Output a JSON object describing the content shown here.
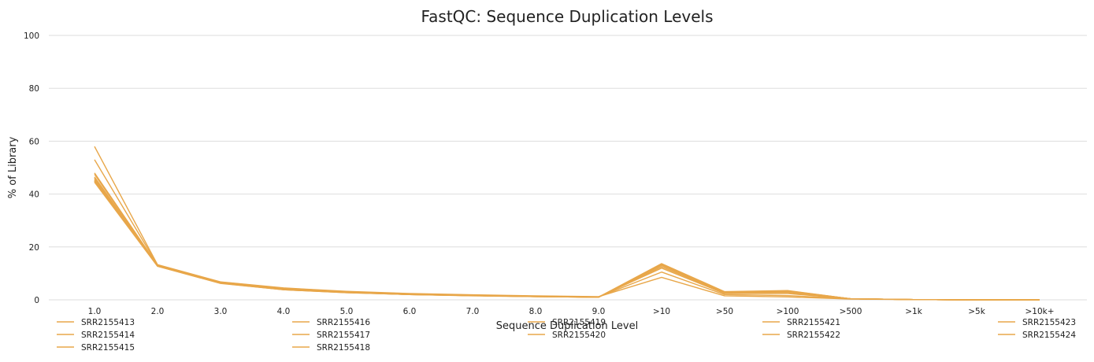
{
  "chart_data": {
    "type": "line",
    "title": "FastQC: Sequence Duplication Levels",
    "xlabel": "Sequence Duplication Level",
    "ylabel": "% of Library",
    "ylim": [
      0,
      100
    ],
    "yticks": [
      0,
      20,
      40,
      60,
      80,
      100
    ],
    "grid": true,
    "legend_position": "bottom",
    "color": "#e8a74a",
    "categories": [
      "1.0",
      "2.0",
      "3.0",
      "4.0",
      "5.0",
      "6.0",
      "7.0",
      "8.0",
      "9.0",
      ">10",
      ">50",
      ">100",
      ">500",
      ">1k",
      ">5k",
      ">10k+"
    ],
    "series": [
      {
        "name": "SRR2155413",
        "values": [
          58.0,
          13.3,
          6.8,
          4.5,
          3.2,
          2.4,
          1.9,
          1.5,
          1.2,
          8.5,
          1.5,
          1.1,
          0.3,
          0.1,
          0.0,
          0.0
        ]
      },
      {
        "name": "SRR2155414",
        "values": [
          53.0,
          13.2,
          6.7,
          4.4,
          3.1,
          2.3,
          1.8,
          1.4,
          1.1,
          10.5,
          2.0,
          1.6,
          0.4,
          0.1,
          0.0,
          0.0
        ]
      },
      {
        "name": "SRR2155415",
        "values": [
          48.0,
          13.1,
          6.6,
          4.2,
          3.0,
          2.2,
          1.7,
          1.4,
          1.1,
          12.0,
          2.4,
          2.4,
          0.4,
          0.1,
          0.0,
          0.0
        ]
      },
      {
        "name": "SRR2155416",
        "values": [
          47.5,
          13.0,
          6.5,
          4.1,
          2.9,
          2.2,
          1.7,
          1.3,
          1.1,
          12.5,
          2.6,
          2.8,
          0.4,
          0.1,
          0.0,
          0.0
        ]
      },
      {
        "name": "SRR2155417",
        "values": [
          46.5,
          12.9,
          6.5,
          4.0,
          2.9,
          2.1,
          1.7,
          1.3,
          1.0,
          13.0,
          2.7,
          3.0,
          0.4,
          0.1,
          0.0,
          0.0
        ]
      },
      {
        "name": "SRR2155418",
        "values": [
          46.0,
          12.9,
          6.4,
          4.0,
          2.8,
          2.1,
          1.6,
          1.3,
          1.0,
          13.2,
          2.8,
          3.1,
          0.4,
          0.1,
          0.0,
          0.0
        ]
      },
      {
        "name": "SRR2155419",
        "values": [
          45.5,
          12.8,
          6.4,
          3.9,
          2.8,
          2.1,
          1.6,
          1.3,
          1.0,
          13.4,
          2.9,
          3.2,
          0.4,
          0.1,
          0.0,
          0.0
        ]
      },
      {
        "name": "SRR2155420",
        "values": [
          45.0,
          12.8,
          6.3,
          3.9,
          2.8,
          2.0,
          1.6,
          1.2,
          1.0,
          13.5,
          3.0,
          3.3,
          0.4,
          0.1,
          0.0,
          0.0
        ]
      },
      {
        "name": "SRR2155421",
        "values": [
          44.8,
          12.7,
          6.3,
          3.8,
          2.7,
          2.0,
          1.6,
          1.2,
          1.0,
          13.6,
          3.0,
          3.4,
          0.4,
          0.1,
          0.0,
          0.0
        ]
      },
      {
        "name": "SRR2155422",
        "values": [
          44.5,
          12.7,
          6.2,
          3.8,
          2.7,
          2.0,
          1.5,
          1.2,
          1.0,
          13.7,
          3.1,
          3.5,
          0.4,
          0.1,
          0.0,
          0.0
        ]
      },
      {
        "name": "SRR2155423",
        "values": [
          45.2,
          12.8,
          6.3,
          3.9,
          2.8,
          2.0,
          1.6,
          1.2,
          1.0,
          13.3,
          2.9,
          3.2,
          0.4,
          0.1,
          0.0,
          0.0
        ]
      },
      {
        "name": "SRR2155424",
        "values": [
          46.2,
          12.9,
          6.4,
          4.0,
          2.8,
          2.1,
          1.6,
          1.3,
          1.0,
          13.1,
          2.8,
          3.0,
          0.4,
          0.1,
          0.0,
          0.0
        ]
      }
    ]
  }
}
